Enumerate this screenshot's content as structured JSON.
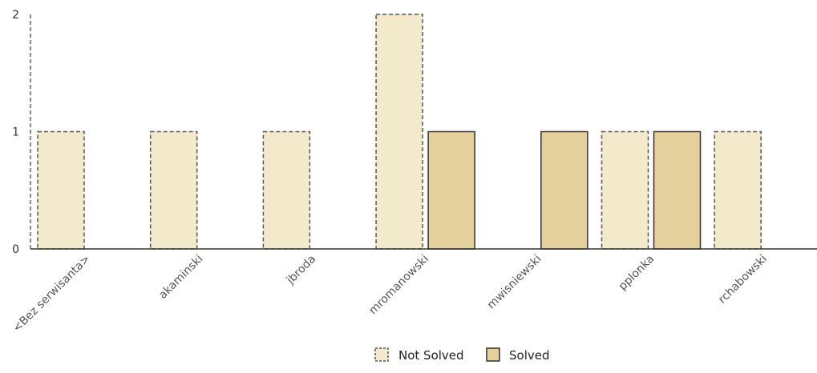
{
  "chart_data": {
    "type": "bar",
    "title": "",
    "xlabel": "",
    "ylabel": "",
    "categories": [
      "<Bez serwisanta>",
      "akaminski",
      "jbroda",
      "mromanowski",
      "mwisniewski",
      "pplonka",
      "rchabowski"
    ],
    "series": [
      {
        "name": "Not Solved",
        "values": [
          1,
          1,
          1,
          2,
          0,
          1,
          1
        ],
        "color": "#f3e9cb",
        "stroke": "#555555",
        "dashed": true
      },
      {
        "name": "Solved",
        "values": [
          0,
          0,
          0,
          1,
          1,
          1,
          0
        ],
        "color": "#e4d09a",
        "stroke": "#333333",
        "dashed": false
      }
    ],
    "ylim": [
      0,
      2
    ],
    "yticks": [
      0,
      1,
      2
    ],
    "grid": false,
    "legend": "bottom-center"
  }
}
